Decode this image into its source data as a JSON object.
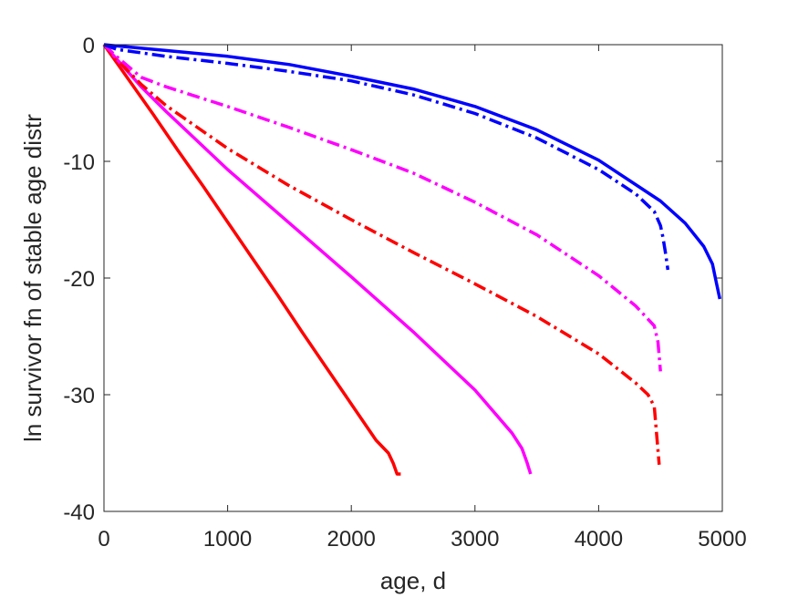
{
  "chart_data": {
    "type": "line",
    "title": "",
    "xlabel": "age, d",
    "ylabel": "ln survivor fn of stable age distr",
    "xlim": [
      0,
      5000
    ],
    "ylim": [
      -40,
      0
    ],
    "xticks": [
      0,
      1000,
      2000,
      3000,
      4000,
      5000
    ],
    "yticks": [
      0,
      -10,
      -20,
      -30,
      -40
    ],
    "xtick_labels": [
      "0",
      "1000",
      "2000",
      "3000",
      "4000",
      "5000"
    ],
    "ytick_labels": [
      "0",
      "-10",
      "-20",
      "-30",
      "-40"
    ],
    "grid": false,
    "legend": "none",
    "series": [
      {
        "color": "#ff0000",
        "style": "solid",
        "x": [
          0,
          100,
          200,
          400,
          600,
          800,
          1000,
          1200,
          1400,
          1600,
          1800,
          2000,
          2200,
          2300,
          2340,
          2370,
          2400
        ],
        "y": [
          0,
          -1.5,
          -3.0,
          -6.0,
          -9.1,
          -12.1,
          -15.2,
          -18.3,
          -21.4,
          -24.6,
          -27.7,
          -30.8,
          -33.9,
          -35.0,
          -35.9,
          -36.8,
          -36.8
        ]
      },
      {
        "color": "#ff00ff",
        "style": "solid",
        "x": [
          0,
          100,
          300,
          500,
          1000,
          1500,
          2000,
          2500,
          3000,
          3300,
          3380,
          3420,
          3450
        ],
        "y": [
          0,
          -1.2,
          -3.6,
          -5.7,
          -10.7,
          -15.3,
          -19.9,
          -24.6,
          -29.6,
          -33.3,
          -34.6,
          -35.8,
          -36.8
        ]
      },
      {
        "color": "#ff0000",
        "style": "dashdot",
        "x": [
          0,
          100,
          300,
          500,
          1000,
          1500,
          2000,
          2500,
          3000,
          3500,
          4000,
          4300,
          4400,
          4450,
          4470,
          4490
        ],
        "y": [
          0,
          -1.2,
          -3.4,
          -5.2,
          -8.9,
          -12.1,
          -15.0,
          -17.8,
          -20.5,
          -23.3,
          -26.5,
          -29.0,
          -30.0,
          -31.0,
          -33.5,
          -36.0
        ]
      },
      {
        "color": "#ff00ff",
        "style": "dashdot",
        "x": [
          0,
          100,
          300,
          500,
          1000,
          1500,
          2000,
          2500,
          3000,
          3500,
          4000,
          4300,
          4450,
          4480,
          4500
        ],
        "y": [
          0,
          -1.0,
          -2.8,
          -3.6,
          -5.3,
          -7.1,
          -9.0,
          -11.0,
          -13.5,
          -16.3,
          -19.8,
          -22.4,
          -24.1,
          -25.5,
          -28.0
        ]
      },
      {
        "color": "#0000ff",
        "style": "dashdot",
        "x": [
          0,
          100,
          500,
          1000,
          1500,
          2000,
          2500,
          3000,
          3500,
          4000,
          4300,
          4450,
          4500,
          4520,
          4540,
          4560
        ],
        "y": [
          0,
          -0.4,
          -1.0,
          -1.6,
          -2.3,
          -3.1,
          -4.3,
          -5.9,
          -8.0,
          -10.7,
          -12.8,
          -14.3,
          -15.5,
          -16.5,
          -17.8,
          -19.3
        ]
      },
      {
        "color": "#0000ff",
        "style": "solid",
        "x": [
          0,
          500,
          1000,
          1500,
          2000,
          2500,
          3000,
          3500,
          4000,
          4500,
          4700,
          4850,
          4920,
          4950,
          4980
        ],
        "y": [
          0,
          -0.5,
          -1.0,
          -1.7,
          -2.7,
          -3.8,
          -5.3,
          -7.3,
          -9.9,
          -13.4,
          -15.3,
          -17.3,
          -18.8,
          -20.3,
          -21.8
        ]
      }
    ]
  }
}
